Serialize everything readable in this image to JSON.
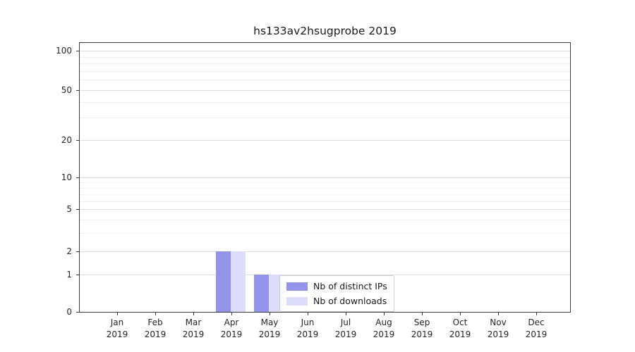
{
  "chart_data": {
    "type": "bar",
    "title": "hs133av2hsugprobe 2019",
    "categories": [
      "Jan",
      "Feb",
      "Mar",
      "Apr",
      "May",
      "Jun",
      "Jul",
      "Aug",
      "Sep",
      "Oct",
      "Nov",
      "Dec"
    ],
    "year": "2019",
    "series": [
      {
        "name": "Nb of distinct IPs",
        "color": "#9294ea",
        "values": [
          0,
          0,
          0,
          2,
          1,
          0,
          0,
          0,
          0,
          0,
          0,
          0
        ]
      },
      {
        "name": "Nb of downloads",
        "color": "#dcdcfb",
        "values": [
          0,
          0,
          0,
          2,
          1,
          0,
          0,
          0,
          0,
          0,
          0,
          0
        ]
      }
    ],
    "yscale": "symlog",
    "yticks": [
      0,
      1,
      2,
      5,
      10,
      20,
      50,
      100
    ],
    "ylim": [
      0,
      100
    ],
    "grid": "on",
    "legend_labels": [
      "Nb of distinct IPs",
      "Nb of downloads"
    ]
  }
}
